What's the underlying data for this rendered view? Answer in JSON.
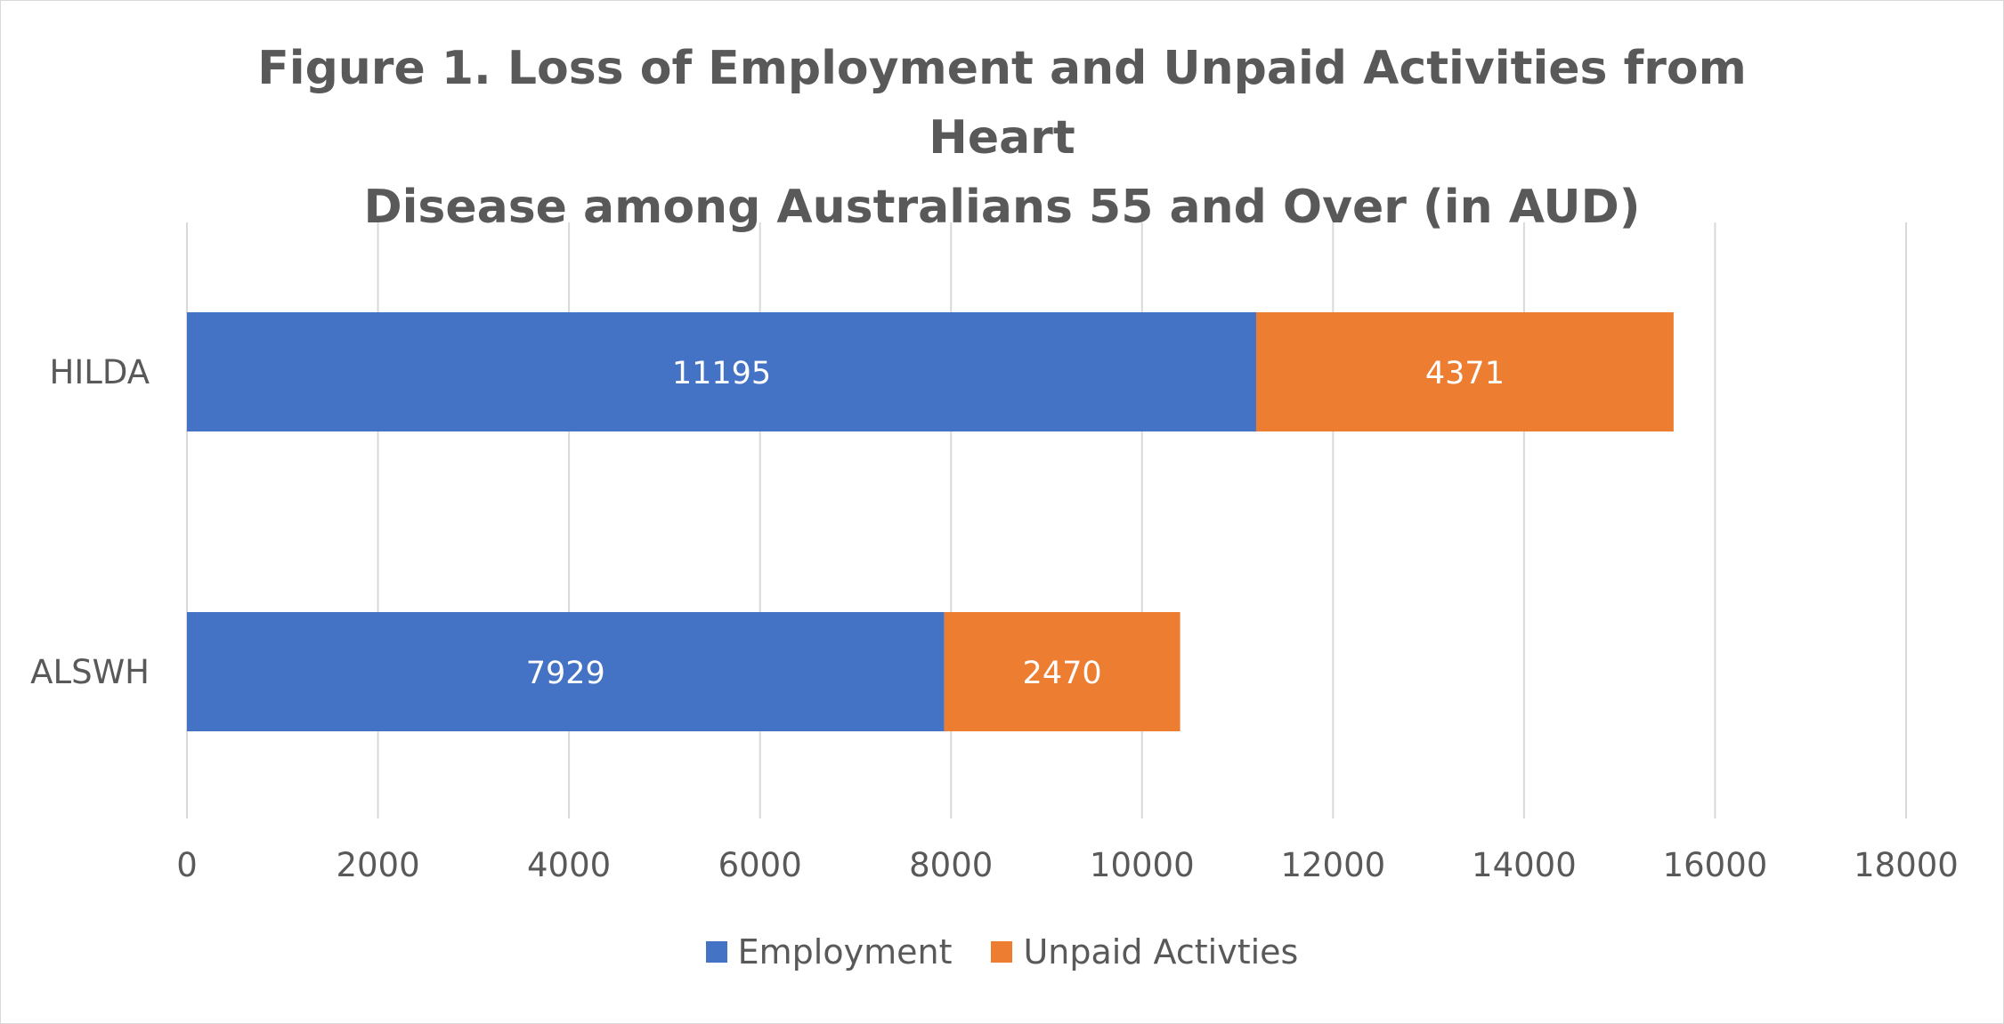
{
  "chart_data": {
    "type": "bar",
    "orientation": "horizontal",
    "stacked": true,
    "title": "Figure 1. Loss of Employment and Unpaid Activities from Heart Disease among Australians 55 and Over (in AUD)",
    "title_lines": [
      "Figure 1. Loss of Employment and Unpaid Activities from Heart",
      "Disease among Australians 55 and Over (in AUD)"
    ],
    "categories": [
      "HILDA",
      "ALSWH"
    ],
    "series": [
      {
        "name": "Employment",
        "values": [
          11195,
          7929
        ],
        "color": "#4472C4"
      },
      {
        "name": "Unpaid Activties",
        "values": [
          4371,
          2470
        ],
        "color": "#ED7D31"
      }
    ],
    "xlim": [
      0,
      18000
    ],
    "x_ticks": [
      "0",
      "2000",
      "4000",
      "6000",
      "8000",
      "10000",
      "12000",
      "14000",
      "16000",
      "18000"
    ],
    "xlabel": "",
    "ylabel": "",
    "grid": "vertical",
    "legend": "bottom",
    "data_labels": true
  }
}
